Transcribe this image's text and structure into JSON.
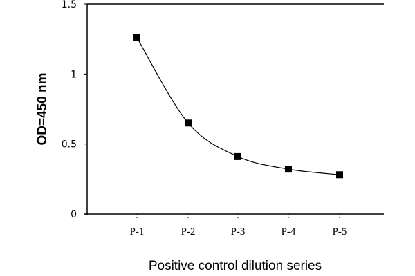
{
  "chart_data": {
    "type": "line",
    "title": "",
    "xlabel": "Positive control dilution series",
    "ylabel": "OD=450 nm",
    "categories": [
      "P-1",
      "P-2",
      "P-3",
      "P-4",
      "P-5"
    ],
    "series": [
      {
        "name": "OD450",
        "values": [
          1.26,
          0.65,
          0.41,
          0.32,
          0.28
        ]
      }
    ],
    "ylim": [
      0,
      1.5
    ],
    "yticks": [
      0,
      0.5,
      1,
      1.5
    ],
    "ytick_labels": [
      "0",
      "0.5",
      "1",
      "1.5"
    ],
    "grid": false,
    "marker": "square",
    "line_color": "#000000"
  }
}
